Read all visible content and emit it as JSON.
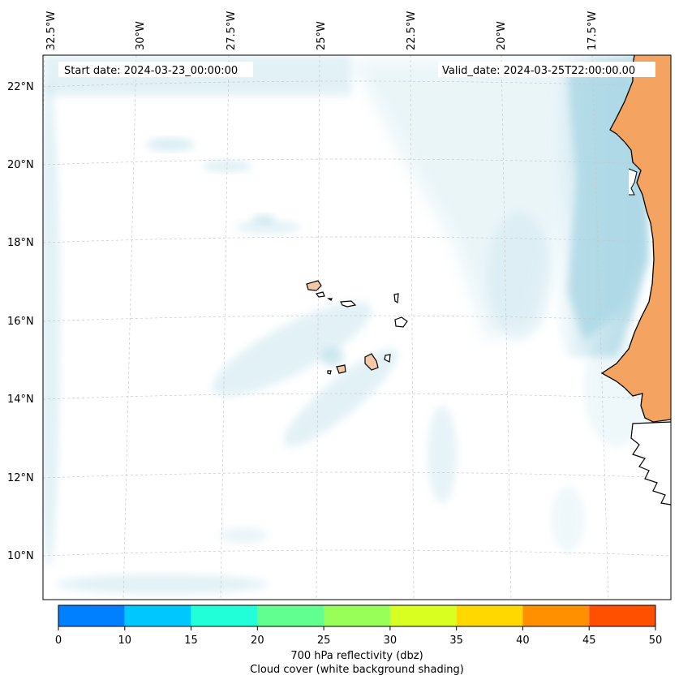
{
  "map": {
    "start_date": "Start date: 2024-03-23_00:00:00",
    "valid_date": "Valid_date: 2024-03-25T22:00:00.00",
    "lon_labels": [
      "32.5°W",
      "30°W",
      "27.5°W",
      "25°W",
      "22.5°W",
      "20°W",
      "17.5°W"
    ],
    "lat_labels": [
      "22°N",
      "20°N",
      "18°N",
      "16°N",
      "14°N",
      "12°N",
      "10°N"
    ],
    "colors": {
      "cloud": "#add8e6",
      "land": "#f4a460",
      "coast": "#000000",
      "grid": "#c8c8c8"
    }
  },
  "colorbar": {
    "ticks": [
      "0",
      "10",
      "15",
      "20",
      "25",
      "30",
      "35",
      "40",
      "45",
      "50"
    ],
    "colors": [
      "#0080ff",
      "#00c8ff",
      "#20ffd8",
      "#60ff90",
      "#98ff58",
      "#d8ff20",
      "#ffd800",
      "#ff9000",
      "#ff5000"
    ],
    "label_line1": "700 hPa reflectivity (dbz)",
    "label_line2": "Cloud cover (white background shading)"
  }
}
